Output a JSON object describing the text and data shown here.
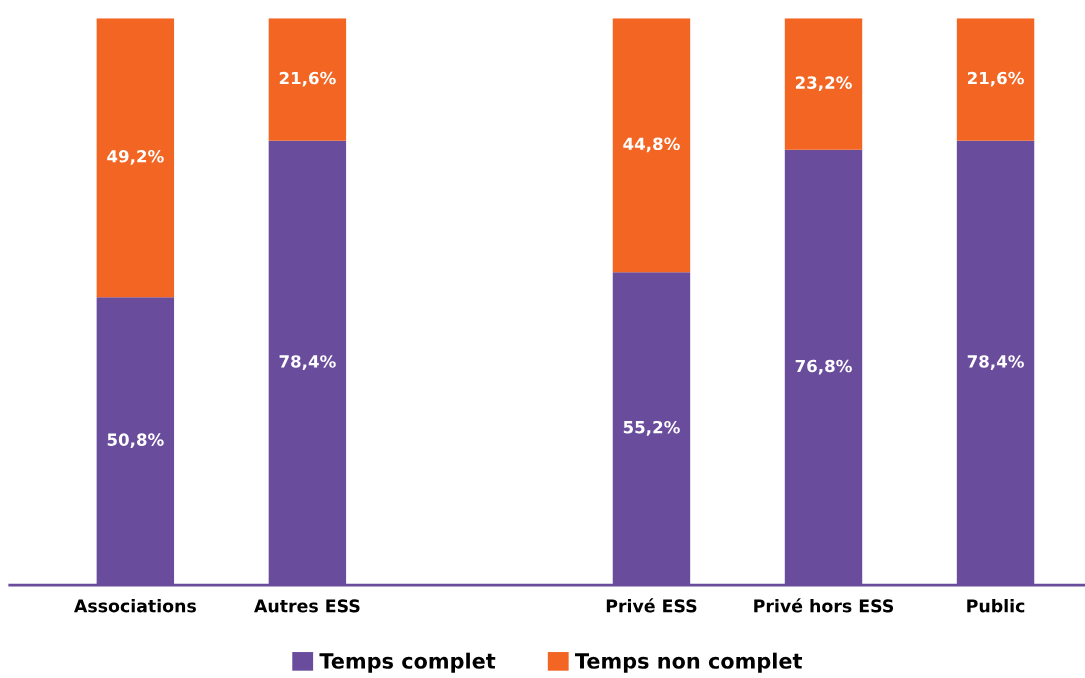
{
  "chart_data": {
    "type": "bar",
    "stacked": true,
    "categories": [
      "Associations",
      "Autres ESS",
      null,
      "Privé ESS",
      "Privé hors ESS",
      "Public"
    ],
    "series": [
      {
        "name": "Temps complet",
        "color": "#6a4c9c",
        "values": [
          50.8,
          78.4,
          null,
          55.2,
          76.8,
          78.4
        ],
        "value_labels": [
          "50,8%",
          "78,4%",
          null,
          "55,2%",
          "76,8%",
          "78,4%"
        ]
      },
      {
        "name": "Temps non complet",
        "color": "#f26522",
        "values": [
          49.2,
          21.6,
          null,
          44.8,
          23.2,
          21.6
        ],
        "value_labels": [
          "49,2%",
          "21,6%",
          null,
          "44,8%",
          "23,2%",
          "21,6%"
        ]
      }
    ],
    "ylim": [
      0,
      100
    ],
    "tick_labels": "x",
    "grid": false,
    "legend": "bottom"
  }
}
